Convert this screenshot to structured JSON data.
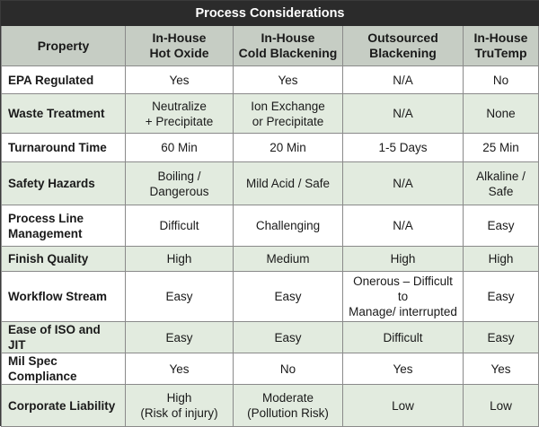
{
  "table": {
    "title": "Process Considerations",
    "headers": {
      "property": "Property",
      "hot_oxide": [
        "In-House",
        "Hot Oxide"
      ],
      "cold_blackening": [
        "In-House",
        "Cold Blackening"
      ],
      "outsourced": [
        "Outsourced",
        "Blackening"
      ],
      "trutemp": [
        "In-House",
        "TruTemp"
      ]
    },
    "rows": [
      {
        "property": [
          "EPA Regulated"
        ],
        "hot_oxide": [
          "Yes"
        ],
        "cold_blackening": [
          "Yes"
        ],
        "outsourced": [
          "N/A"
        ],
        "trutemp": [
          "No"
        ]
      },
      {
        "property": [
          "Waste Treatment"
        ],
        "hot_oxide": [
          "Neutralize",
          "+ Precipitate"
        ],
        "cold_blackening": [
          "Ion Exchange",
          "or Precipitate"
        ],
        "outsourced": [
          "N/A"
        ],
        "trutemp": [
          "None"
        ]
      },
      {
        "property": [
          "Turnaround Time"
        ],
        "hot_oxide": [
          "60 Min"
        ],
        "cold_blackening": [
          "20 Min"
        ],
        "outsourced": [
          "1-5 Days"
        ],
        "trutemp": [
          "25 Min"
        ]
      },
      {
        "property": [
          "Safety Hazards"
        ],
        "hot_oxide": [
          "Boiling /",
          "Dangerous"
        ],
        "cold_blackening": [
          "Mild Acid / Safe"
        ],
        "outsourced": [
          "N/A"
        ],
        "trutemp": [
          "Alkaline / Safe"
        ]
      },
      {
        "property": [
          "Process Line",
          "Management"
        ],
        "hot_oxide": [
          "Difficult"
        ],
        "cold_blackening": [
          "Challenging"
        ],
        "outsourced": [
          "N/A"
        ],
        "trutemp": [
          "Easy"
        ]
      },
      {
        "property": [
          "Finish Quality"
        ],
        "hot_oxide": [
          "High"
        ],
        "cold_blackening": [
          "Medium"
        ],
        "outsourced": [
          "High"
        ],
        "trutemp": [
          "High"
        ]
      },
      {
        "property": [
          "Workflow Stream"
        ],
        "hot_oxide": [
          "Easy"
        ],
        "cold_blackening": [
          "Easy"
        ],
        "outsourced": [
          "Onerous – Difficult to",
          "Manage/ interrupted"
        ],
        "trutemp": [
          "Easy"
        ]
      },
      {
        "property": [
          "Ease of ISO and JIT"
        ],
        "hot_oxide": [
          "Easy"
        ],
        "cold_blackening": [
          "Easy"
        ],
        "outsourced": [
          "Difficult"
        ],
        "trutemp": [
          "Easy"
        ]
      },
      {
        "property": [
          "Mil Spec Compliance"
        ],
        "hot_oxide": [
          "Yes"
        ],
        "cold_blackening": [
          "No"
        ],
        "outsourced": [
          "Yes"
        ],
        "trutemp": [
          "Yes"
        ]
      },
      {
        "property": [
          "Corporate Liability"
        ],
        "hot_oxide": [
          "High",
          "(Risk of injury)"
        ],
        "cold_blackening": [
          "Moderate",
          "(Pollution Risk)"
        ],
        "outsourced": [
          "Low"
        ],
        "trutemp": [
          "Low"
        ]
      }
    ]
  }
}
